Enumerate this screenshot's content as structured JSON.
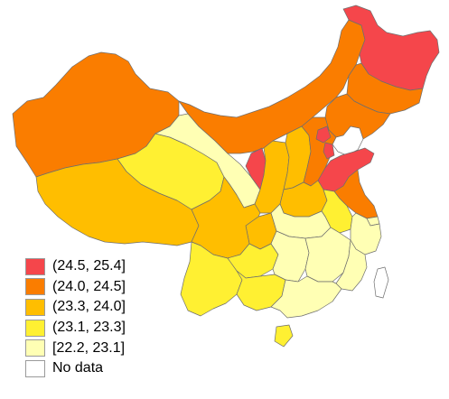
{
  "colors": {
    "bin1": "#f5464b",
    "bin2": "#fa7d00",
    "bin3": "#ffbe00",
    "bin4": "#fff032",
    "bin5": "#ffffb4",
    "nodata": "#ffffff",
    "border": "#6e6e6e"
  },
  "legend": {
    "items": [
      {
        "label": "(24.5, 25.4]",
        "color": "#f5464b"
      },
      {
        "label": "(24.0, 24.5]",
        "color": "#fa7d00"
      },
      {
        "label": "(23.3, 24.0]",
        "color": "#ffbe00"
      },
      {
        "label": "(23.1, 23.3]",
        "color": "#fff032"
      },
      {
        "label": "[22.2, 23.1]",
        "color": "#ffffb4"
      },
      {
        "label": "No data",
        "color": "#ffffff"
      }
    ]
  },
  "regions": [
    {
      "id": "heilongjiang",
      "bin": 1
    },
    {
      "id": "jilin",
      "bin": 2
    },
    {
      "id": "liaoning",
      "bin": 2
    },
    {
      "id": "inner-mongolia",
      "bin": 2
    },
    {
      "id": "xinjiang",
      "bin": 2
    },
    {
      "id": "ningxia",
      "bin": 1
    },
    {
      "id": "beijing",
      "bin": 1
    },
    {
      "id": "tianjin",
      "bin": 1
    },
    {
      "id": "shandong",
      "bin": 1
    },
    {
      "id": "hebei",
      "bin": 2
    },
    {
      "id": "shanxi",
      "bin": 3
    },
    {
      "id": "shaanxi",
      "bin": 3
    },
    {
      "id": "henan",
      "bin": 3
    },
    {
      "id": "jiangsu",
      "bin": 2
    },
    {
      "id": "tibet",
      "bin": 3
    },
    {
      "id": "sichuan",
      "bin": 3
    },
    {
      "id": "chongqing",
      "bin": 3
    },
    {
      "id": "qinghai",
      "bin": 4
    },
    {
      "id": "gansu",
      "bin": 5
    },
    {
      "id": "anhui",
      "bin": 4
    },
    {
      "id": "yunnan",
      "bin": 4
    },
    {
      "id": "guizhou",
      "bin": 4
    },
    {
      "id": "guangxi",
      "bin": 4
    },
    {
      "id": "hainan",
      "bin": 4
    },
    {
      "id": "hubei",
      "bin": 5
    },
    {
      "id": "hunan",
      "bin": 5
    },
    {
      "id": "jiangxi",
      "bin": 5
    },
    {
      "id": "zhejiang",
      "bin": 5
    },
    {
      "id": "fujian",
      "bin": 5
    },
    {
      "id": "guangdong",
      "bin": 5
    },
    {
      "id": "shanghai",
      "bin": 5
    },
    {
      "id": "taiwan",
      "bin": 0
    }
  ]
}
